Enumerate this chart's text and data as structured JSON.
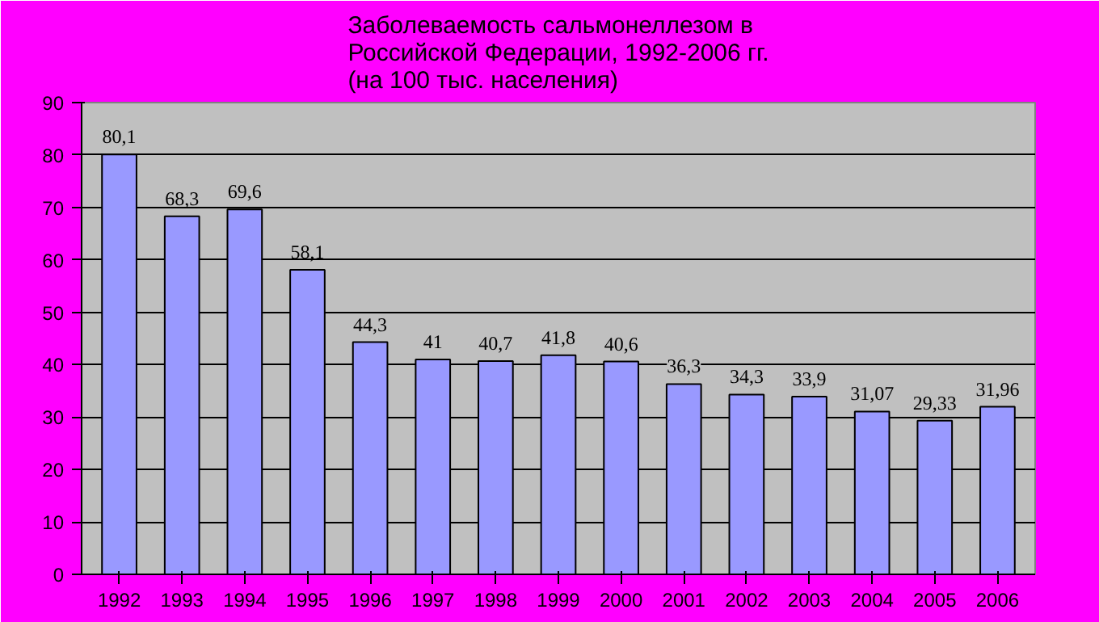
{
  "chart_data": {
    "type": "bar",
    "title": "Заболеваемость сальмонеллезом в\nРоссийской Федерации, 1992-2006 гг.\n(на 100 тыс. населения)",
    "categories": [
      "1992",
      "1993",
      "1994",
      "1995",
      "1996",
      "1997",
      "1998",
      "1999",
      "2000",
      "2001",
      "2002",
      "2003",
      "2004",
      "2005",
      "2006"
    ],
    "values": [
      80.1,
      68.3,
      69.6,
      58.1,
      44.3,
      41,
      40.7,
      41.8,
      40.6,
      36.3,
      34.3,
      33.9,
      31.07,
      29.33,
      31.96
    ],
    "value_labels": [
      "80,1",
      "68,3",
      "69,6",
      "58,1",
      "44,3",
      "41",
      "40,7",
      "41,8",
      "40,6",
      "36,3",
      "34,3",
      "33,9",
      "31,07",
      "29,33",
      "31,96"
    ],
    "color": "#9999ff",
    "ylim": [
      0,
      90
    ],
    "yticks": [
      0,
      10,
      20,
      30,
      40,
      50,
      60,
      70,
      80,
      90
    ],
    "grid": "y"
  }
}
